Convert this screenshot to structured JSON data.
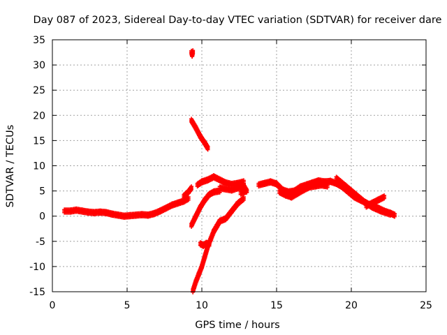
{
  "chart_data": {
    "type": "scatter",
    "title": "Day 087 of 2023, Sidereal Day-to-day VTEC variation (SDTVAR) for receiver dare",
    "xlabel": "GPS time / hours",
    "ylabel": "SDTVAR / TECUs",
    "xlim": [
      0,
      25
    ],
    "ylim": [
      -15,
      35
    ],
    "grid": true,
    "marker_color": "#ff0000",
    "x_ticks": [
      "0",
      "5",
      "10",
      "15",
      "20",
      "25"
    ],
    "y_ticks": [
      "-15",
      "-10",
      "-5",
      "0",
      "5",
      "10",
      "15",
      "20",
      "25",
      "30",
      "35"
    ],
    "series": [
      {
        "name": "main-trace",
        "points": [
          [
            0.8,
            1.0
          ],
          [
            1.2,
            1.0
          ],
          [
            1.6,
            1.2
          ],
          [
            2.0,
            1.0
          ],
          [
            2.4,
            0.8
          ],
          [
            2.8,
            0.7
          ],
          [
            3.2,
            0.8
          ],
          [
            3.6,
            0.7
          ],
          [
            4.0,
            0.4
          ],
          [
            4.4,
            0.2
          ],
          [
            4.8,
            0.0
          ],
          [
            5.2,
            0.1
          ],
          [
            5.6,
            0.2
          ],
          [
            6.0,
            0.3
          ],
          [
            6.4,
            0.2
          ],
          [
            6.8,
            0.5
          ],
          [
            7.2,
            1.0
          ],
          [
            7.6,
            1.6
          ],
          [
            8.0,
            2.2
          ],
          [
            8.4,
            2.6
          ],
          [
            8.8,
            3.0
          ],
          [
            9.1,
            3.5
          ]
        ]
      },
      {
        "name": "rising-segment-a",
        "points": [
          [
            8.8,
            4.0
          ],
          [
            9.1,
            4.8
          ],
          [
            9.3,
            5.6
          ]
        ]
      },
      {
        "name": "mid-trace",
        "points": [
          [
            9.7,
            6.2
          ],
          [
            10.0,
            6.8
          ],
          [
            10.4,
            7.2
          ],
          [
            10.8,
            7.8
          ],
          [
            11.2,
            7.2
          ],
          [
            11.6,
            6.6
          ],
          [
            12.0,
            6.3
          ],
          [
            12.4,
            6.5
          ],
          [
            12.8,
            6.8
          ]
        ]
      },
      {
        "name": "afternoon-trace",
        "points": [
          [
            13.8,
            6.2
          ],
          [
            14.2,
            6.5
          ],
          [
            14.6,
            6.8
          ],
          [
            15.0,
            6.4
          ],
          [
            15.4,
            5.2
          ],
          [
            15.8,
            4.8
          ],
          [
            16.2,
            5.0
          ],
          [
            16.6,
            5.8
          ],
          [
            17.0,
            6.2
          ],
          [
            17.4,
            6.6
          ],
          [
            17.8,
            7.0
          ],
          [
            18.2,
            6.8
          ],
          [
            18.6,
            6.9
          ],
          [
            19.0,
            6.5
          ],
          [
            19.4,
            5.8
          ],
          [
            19.8,
            4.8
          ],
          [
            20.2,
            3.8
          ],
          [
            20.6,
            3.2
          ],
          [
            21.0,
            2.6
          ],
          [
            21.4,
            2.0
          ],
          [
            21.8,
            1.6
          ],
          [
            22.2,
            1.0
          ],
          [
            22.6,
            0.6
          ],
          [
            22.9,
            0.2
          ]
        ]
      },
      {
        "name": "lower-afternoon-trace",
        "points": [
          [
            15.2,
            4.8
          ],
          [
            15.6,
            4.2
          ],
          [
            16.0,
            3.8
          ],
          [
            16.4,
            4.5
          ],
          [
            16.8,
            5.2
          ],
          [
            17.2,
            5.8
          ],
          [
            17.6,
            6.0
          ],
          [
            18.0,
            6.2
          ],
          [
            18.4,
            6.0
          ]
        ]
      },
      {
        "name": "evening-branch",
        "points": [
          [
            19.0,
            7.5
          ],
          [
            19.6,
            6.0
          ],
          [
            20.2,
            4.5
          ],
          [
            20.8,
            3.0
          ],
          [
            21.4,
            1.8
          ],
          [
            22.0,
            1.0
          ],
          [
            22.6,
            0.4
          ]
        ]
      },
      {
        "name": "evening-spur",
        "points": [
          [
            21.0,
            2.0
          ],
          [
            21.4,
            2.6
          ],
          [
            21.8,
            3.2
          ],
          [
            22.2,
            3.8
          ]
        ]
      },
      {
        "name": "high-outlier",
        "points": [
          [
            9.3,
            32.5
          ],
          [
            9.35,
            32.0
          ],
          [
            9.4,
            32.6
          ]
        ]
      },
      {
        "name": "descending-segment",
        "points": [
          [
            9.3,
            19.0
          ],
          [
            9.6,
            17.5
          ],
          [
            9.9,
            15.8
          ],
          [
            10.2,
            14.5
          ],
          [
            10.4,
            13.5
          ]
        ]
      },
      {
        "name": "cross-segment",
        "points": [
          [
            9.3,
            -1.8
          ],
          [
            9.6,
            0.0
          ],
          [
            9.9,
            1.8
          ],
          [
            10.2,
            3.2
          ],
          [
            10.5,
            4.3
          ],
          [
            10.8,
            4.8
          ],
          [
            11.2,
            5.0
          ]
        ]
      },
      {
        "name": "steep-rise",
        "points": [
          [
            9.4,
            -14.8
          ],
          [
            9.6,
            -13.0
          ],
          [
            9.8,
            -11.5
          ],
          [
            10.0,
            -10.0
          ],
          [
            10.2,
            -8.0
          ],
          [
            10.4,
            -6.0
          ],
          [
            10.6,
            -4.5
          ],
          [
            10.8,
            -3.0
          ],
          [
            11.0,
            -2.0
          ],
          [
            11.2,
            -1.0
          ],
          [
            11.6,
            -0.5
          ],
          [
            12.0,
            1.0
          ],
          [
            12.4,
            2.5
          ],
          [
            12.8,
            3.5
          ]
        ]
      },
      {
        "name": "small-cluster",
        "points": [
          [
            9.9,
            -5.5
          ],
          [
            10.1,
            -5.8
          ],
          [
            10.3,
            -5.4
          ],
          [
            10.5,
            -5.6
          ]
        ]
      },
      {
        "name": "jump-cluster",
        "points": [
          [
            11.2,
            5.6
          ],
          [
            11.6,
            5.4
          ],
          [
            12.0,
            5.2
          ],
          [
            12.4,
            5.6
          ],
          [
            12.8,
            6.0
          ],
          [
            13.0,
            5.0
          ],
          [
            12.6,
            4.6
          ]
        ]
      }
    ]
  }
}
